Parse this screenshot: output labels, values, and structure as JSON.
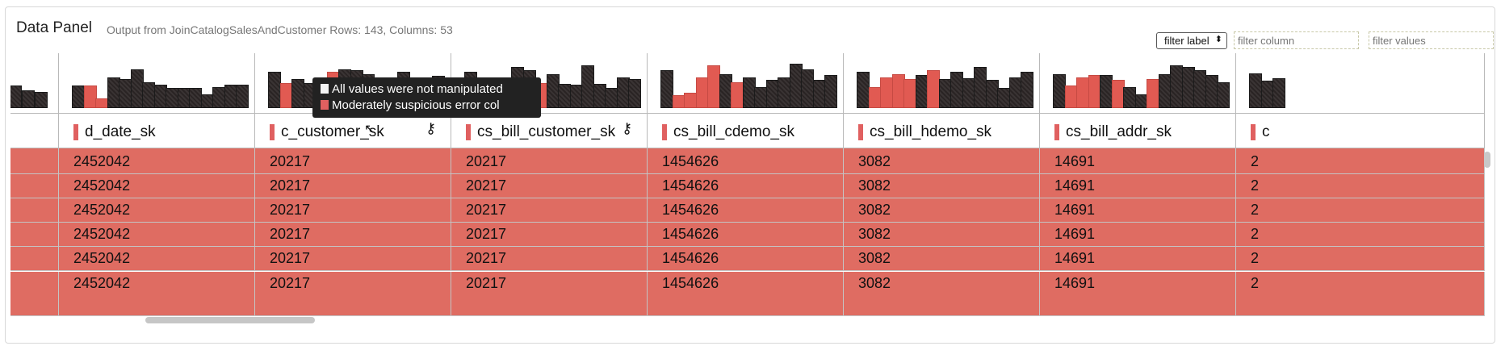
{
  "header": {
    "title": "Data Panel",
    "subtitle": "Output from JoinCatalogSalesAndCustomer Rows: 143, Columns: 53",
    "filter_select_label": "filter label",
    "filter_column_placeholder": "filter column",
    "filter_values_placeholder": "filter values"
  },
  "columns": [
    {
      "name": "",
      "key": false,
      "value": "",
      "bars": [
        0.45,
        0.35,
        0.32
      ]
    },
    {
      "name": "d_date_sk",
      "key": false,
      "value": "2452042",
      "bars": [
        0.45,
        0.45,
        0.2,
        0.62,
        0.58,
        0.78,
        0.52,
        0.46,
        0.4,
        0.4,
        0.4,
        0.28,
        0.42,
        0.46,
        0.46
      ]
    },
    {
      "name": "c_customer_sk",
      "key": true,
      "value": "20217",
      "bars": [
        0.72,
        0.5,
        0.58,
        0.5,
        0.62,
        0.72,
        0.78,
        0.76,
        0.68,
        0.55,
        0.62,
        0.72,
        0.48,
        0.56,
        0.64
      ]
    },
    {
      "name": "cs_bill_customer_sk",
      "key": true,
      "value": "20217",
      "bars": [
        0.72,
        0.58,
        0.25,
        0.62,
        0.82,
        0.75,
        0.5,
        0.68,
        0.48,
        0.46,
        0.85,
        0.48,
        0.4,
        0.62,
        0.58
      ]
    },
    {
      "name": "cs_bill_cdemo_sk",
      "key": false,
      "value": "1454626",
      "bars": [
        0.75,
        0.25,
        0.3,
        0.62,
        0.85,
        0.68,
        0.52,
        0.62,
        0.42,
        0.56,
        0.62,
        0.88,
        0.78,
        0.56,
        0.66
      ]
    },
    {
      "name": "cs_bill_hdemo_sk",
      "key": false,
      "value": "3082",
      "bars": [
        0.72,
        0.42,
        0.62,
        0.68,
        0.58,
        0.66,
        0.75,
        0.58,
        0.72,
        0.6,
        0.82,
        0.56,
        0.4,
        0.62,
        0.72
      ]
    },
    {
      "name": "cs_bill_addr_sk",
      "key": false,
      "value": "14691",
      "bars": [
        0.68,
        0.45,
        0.62,
        0.66,
        0.66,
        0.56,
        0.42,
        0.28,
        0.58,
        0.68,
        0.86,
        0.82,
        0.76,
        0.66,
        0.52
      ]
    },
    {
      "name": "c",
      "key": false,
      "value": "2",
      "bars": [
        0.7,
        0.55,
        0.6
      ]
    }
  ],
  "tooltip": {
    "line1": "All values were not manipulated",
    "line2": "Moderately suspicious error col"
  },
  "colors": {
    "error": "#df6c62",
    "bar_dark": "#3a3434",
    "bar_red": "#e15a52"
  }
}
